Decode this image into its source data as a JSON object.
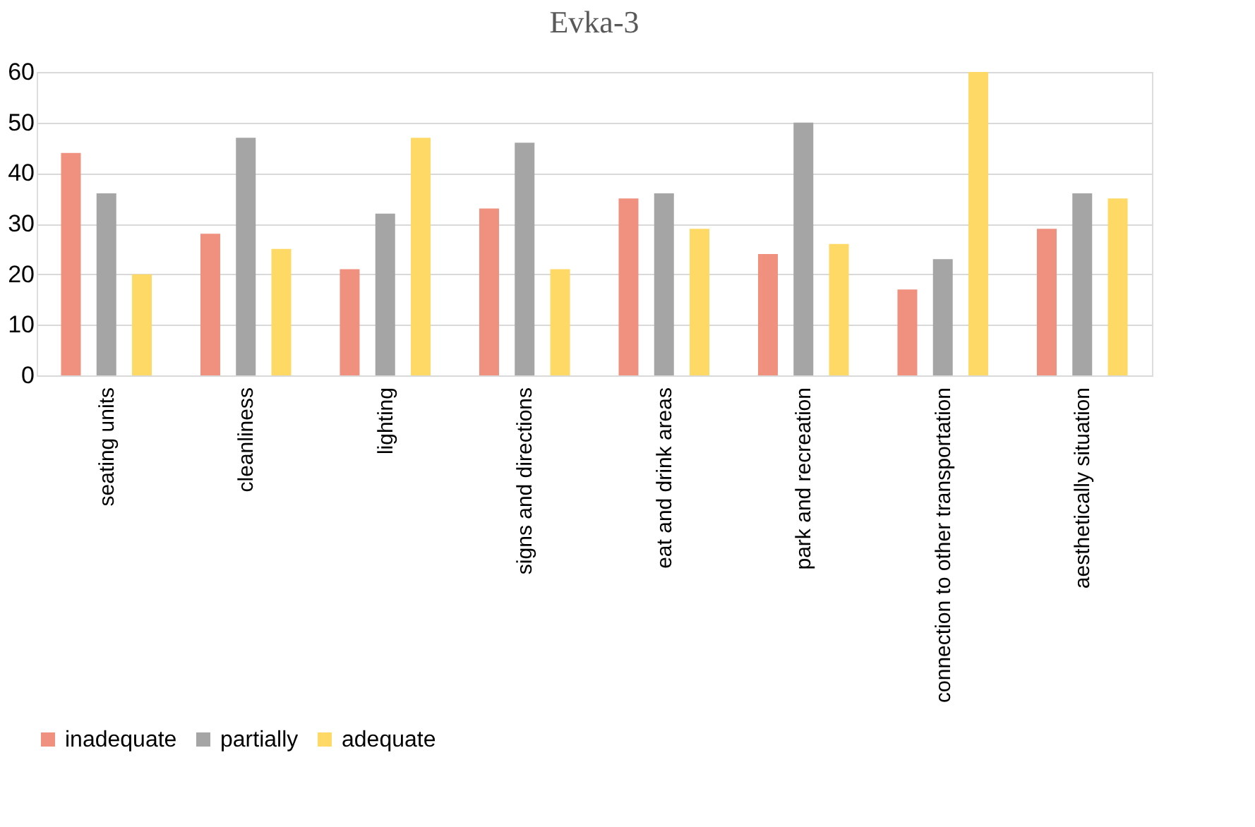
{
  "chart_data": {
    "type": "bar",
    "title": "Evka-3",
    "categories": [
      "seating units",
      "cleanliness",
      "lighting",
      "signs and directions",
      "eat and drink areas",
      "park and recreation",
      "connection to other transportation",
      "aesthetically situation"
    ],
    "series": [
      {
        "name": "inadequate",
        "color": "#f0907f",
        "values": [
          44,
          28,
          21,
          33,
          35,
          24,
          17,
          29
        ]
      },
      {
        "name": "partially",
        "color": "#a5a5a5",
        "values": [
          36,
          47,
          32,
          46,
          36,
          50,
          23,
          36
        ]
      },
      {
        "name": "adequate",
        "color": "#ffd966",
        "values": [
          20,
          25,
          47,
          21,
          29,
          26,
          60,
          35
        ]
      }
    ],
    "ylim": [
      0,
      60
    ],
    "yticks": [
      0,
      10,
      20,
      30,
      40,
      50,
      60
    ],
    "grid": "y",
    "legend": "bottom"
  }
}
